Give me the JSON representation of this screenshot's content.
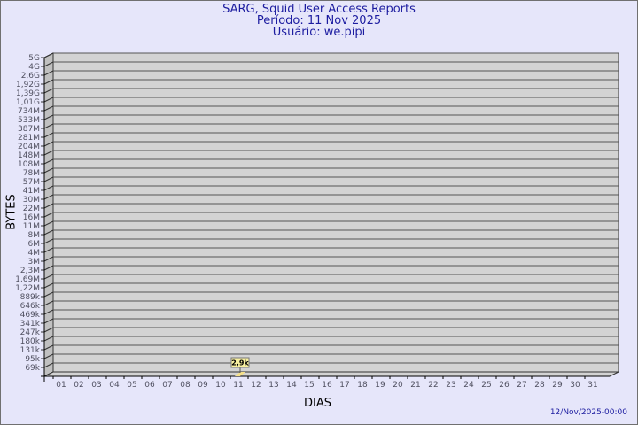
{
  "title_lines": [
    "SARG, Squid User Access Reports",
    "Período: 11 Nov 2025",
    "Usuário: we.pipi"
  ],
  "timestamp": "12/Nov/2025-00:00",
  "chart_data": {
    "type": "bar",
    "title": "SARG, Squid User Access Reports",
    "xlabel": "DIAS",
    "ylabel": "BYTES",
    "yscale": "log",
    "y_tick_labels": [
      "5G",
      "4G",
      "2,6G",
      "1,92G",
      "1,39G",
      "1,01G",
      "734M",
      "533M",
      "387M",
      "281M",
      "204M",
      "148M",
      "108M",
      "78M",
      "57M",
      "41M",
      "30M",
      "22M",
      "16M",
      "11M",
      "8M",
      "6M",
      "4M",
      "3M",
      "2,3M",
      "1,69M",
      "1,22M",
      "889k",
      "646k",
      "469k",
      "341k",
      "247k",
      "180k",
      "131k",
      "95k",
      "69k"
    ],
    "categories": [
      "01",
      "02",
      "03",
      "04",
      "05",
      "06",
      "07",
      "08",
      "09",
      "10",
      "11",
      "12",
      "13",
      "14",
      "15",
      "16",
      "17",
      "18",
      "19",
      "20",
      "21",
      "22",
      "23",
      "24",
      "25",
      "26",
      "27",
      "28",
      "29",
      "30",
      "31"
    ],
    "series": [
      {
        "points": [
          {
            "x": "11",
            "y": 2900,
            "label": "2,9k"
          }
        ]
      }
    ],
    "grid": true,
    "colors": {
      "bar": "#f5e08a",
      "wall": "#d3d3d3",
      "side": "#c0c0c0",
      "label_bg": "#f8f0a0"
    }
  }
}
